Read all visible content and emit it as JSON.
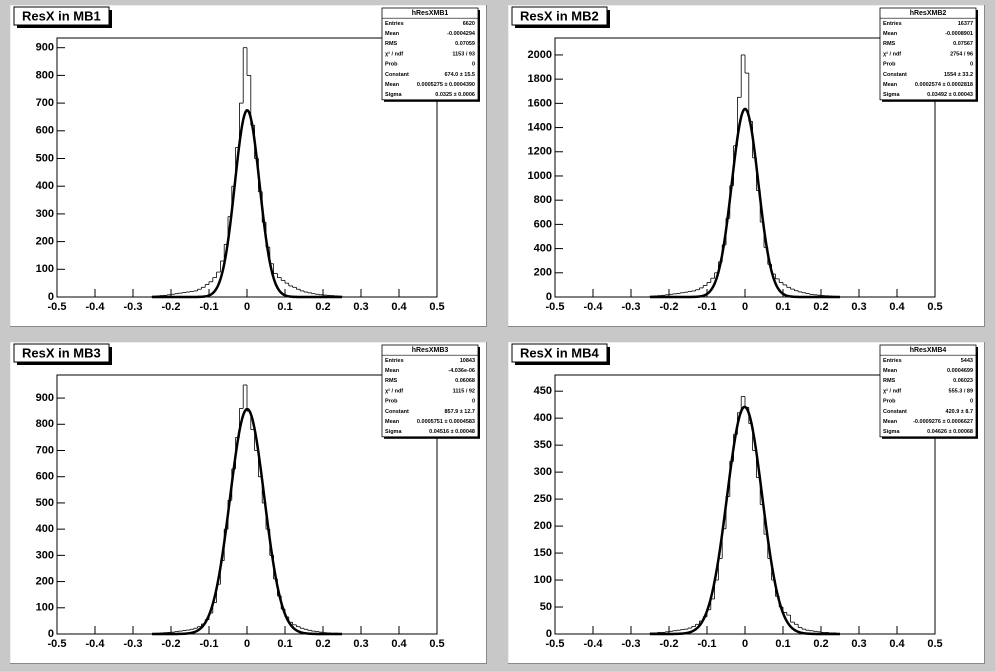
{
  "chart_data": [
    {
      "type": "histogram",
      "title": "ResX in MB1",
      "bins": [
        -0.25,
        -0.24,
        -0.23,
        -0.22,
        -0.21,
        -0.2,
        -0.19,
        -0.18,
        -0.17,
        -0.16,
        -0.15,
        -0.14,
        -0.13,
        -0.12,
        -0.11,
        -0.1,
        -0.09,
        -0.08,
        -0.07,
        -0.06,
        -0.05,
        -0.04,
        -0.03,
        -0.02,
        -0.01,
        0,
        0.01,
        0.02,
        0.03,
        0.04,
        0.05,
        0.06,
        0.07,
        0.08,
        0.09,
        0.1,
        0.11,
        0.12,
        0.13,
        0.14,
        0.15,
        0.16,
        0.17,
        0.18,
        0.19,
        0.2,
        0.21,
        0.22,
        0.23,
        0.24,
        0.25
      ],
      "counts": [
        3,
        4,
        5,
        6,
        8,
        10,
        12,
        14,
        16,
        18,
        20,
        22,
        28,
        35,
        45,
        55,
        70,
        90,
        130,
        190,
        290,
        400,
        540,
        700,
        900,
        800,
        620,
        500,
        380,
        270,
        180,
        120,
        85,
        70,
        60,
        50,
        40,
        35,
        28,
        22,
        18,
        15,
        12,
        10,
        8,
        7,
        6,
        5,
        4,
        3
      ],
      "color": "#000000",
      "xlim": [
        -0.5,
        0.5
      ],
      "xticks": [
        -0.5,
        -0.4,
        -0.3,
        -0.2,
        -0.1,
        0,
        0.1,
        0.2,
        0.3,
        0.4,
        0.5
      ],
      "ylim": [
        0,
        935
      ],
      "yticks": [
        0,
        100,
        200,
        300,
        400,
        500,
        600,
        700,
        800,
        900
      ],
      "stats": {
        "title": "hResXMB1",
        "rows": [
          {
            "label": "Entries",
            "value": 6620
          },
          {
            "label": "Mean",
            "value": -0.0004294
          },
          {
            "label": "RMS",
            "value": 0.07059
          },
          {
            "label": "χ² / ndf",
            "value_label": "1153 / 93"
          },
          {
            "label": "Prob",
            "value": 0
          },
          {
            "label": "Constant",
            "value": 674.0,
            "error": 15.5,
            "value_label": "674.0 ± 15.5"
          },
          {
            "label": "Mean",
            "value": 0.0005275,
            "error": 0.000439,
            "value_label": "0.0005275 ± 0.0004390"
          },
          {
            "label": "Sigma",
            "value": 0.0325,
            "error": 0.0006,
            "value_label": "0.0325 ± 0.0006"
          }
        ]
      }
    },
    {
      "type": "histogram",
      "title": "ResX in MB2",
      "bins": [
        -0.25,
        -0.24,
        -0.23,
        -0.22,
        -0.21,
        -0.2,
        -0.19,
        -0.18,
        -0.17,
        -0.16,
        -0.15,
        -0.14,
        -0.13,
        -0.12,
        -0.11,
        -0.1,
        -0.09,
        -0.08,
        -0.07,
        -0.06,
        -0.05,
        -0.04,
        -0.03,
        -0.02,
        -0.01,
        0,
        0.01,
        0.02,
        0.03,
        0.04,
        0.05,
        0.06,
        0.07,
        0.08,
        0.09,
        0.1,
        0.11,
        0.12,
        0.13,
        0.14,
        0.15,
        0.16,
        0.17,
        0.18,
        0.19,
        0.2,
        0.21,
        0.22,
        0.23,
        0.24,
        0.25
      ],
      "counts": [
        7,
        9,
        11,
        14,
        18,
        22,
        26,
        30,
        35,
        40,
        45,
        50,
        60,
        75,
        95,
        120,
        155,
        200,
        290,
        430,
        650,
        920,
        1250,
        1650,
        2000,
        1850,
        1450,
        1150,
        880,
        620,
        410,
        270,
        190,
        150,
        120,
        100,
        80,
        65,
        52,
        42,
        35,
        28,
        22,
        18,
        15,
        12,
        10,
        8,
        6,
        5
      ],
      "color": "#000000",
      "xlim": [
        -0.5,
        0.5
      ],
      "xticks": [
        -0.5,
        -0.4,
        -0.3,
        -0.2,
        -0.1,
        0,
        0.1,
        0.2,
        0.3,
        0.4,
        0.5
      ],
      "ylim": [
        0,
        2140
      ],
      "yticks": [
        0,
        200,
        400,
        600,
        800,
        1000,
        1200,
        1400,
        1600,
        1800,
        2000
      ],
      "stats": {
        "title": "hResXMB2",
        "rows": [
          {
            "label": "Entries",
            "value": 16377
          },
          {
            "label": "Mean",
            "value": -0.0008901
          },
          {
            "label": "RMS",
            "value": 0.07567
          },
          {
            "label": "χ² / ndf",
            "value_label": "2754 / 96"
          },
          {
            "label": "Prob",
            "value": 0
          },
          {
            "label": "Constant",
            "value": 1554,
            "error": 33.2,
            "value_label": "1554 ± 33.2"
          },
          {
            "label": "Mean",
            "value": 0.0002574,
            "error": 0.0002818,
            "value_label": "0.0002574 ± 0.0002818"
          },
          {
            "label": "Sigma",
            "value": 0.03492,
            "error": 0.00043,
            "value_label": "0.03492 ± 0.00043"
          }
        ]
      }
    },
    {
      "type": "histogram",
      "title": "ResX in MB3",
      "bins": [
        -0.25,
        -0.24,
        -0.23,
        -0.22,
        -0.21,
        -0.2,
        -0.19,
        -0.18,
        -0.17,
        -0.16,
        -0.15,
        -0.14,
        -0.13,
        -0.12,
        -0.11,
        -0.1,
        -0.09,
        -0.08,
        -0.07,
        -0.06,
        -0.05,
        -0.04,
        -0.03,
        -0.02,
        -0.01,
        0,
        0.01,
        0.02,
        0.03,
        0.04,
        0.05,
        0.06,
        0.07,
        0.08,
        0.09,
        0.1,
        0.11,
        0.12,
        0.13,
        0.14,
        0.15,
        0.16,
        0.17,
        0.18,
        0.19,
        0.2,
        0.21,
        0.22,
        0.23,
        0.24,
        0.25
      ],
      "counts": [
        2,
        3,
        4,
        5,
        6,
        7,
        9,
        11,
        13,
        15,
        18,
        22,
        28,
        38,
        55,
        80,
        120,
        190,
        280,
        400,
        510,
        630,
        750,
        860,
        950,
        850,
        780,
        700,
        600,
        500,
        400,
        300,
        210,
        145,
        95,
        65,
        45,
        35,
        28,
        22,
        18,
        14,
        11,
        9,
        7,
        5,
        4,
        3,
        3,
        2
      ],
      "color": "#000000",
      "xlim": [
        -0.5,
        0.5
      ],
      "xticks": [
        -0.5,
        -0.4,
        -0.3,
        -0.2,
        -0.1,
        0,
        0.1,
        0.2,
        0.3,
        0.4,
        0.5
      ],
      "ylim": [
        0,
        988
      ],
      "yticks": [
        0,
        100,
        200,
        300,
        400,
        500,
        600,
        700,
        800,
        900
      ],
      "stats": {
        "title": "hResXMB3",
        "rows": [
          {
            "label": "Entries",
            "value": 10843
          },
          {
            "label": "Mean",
            "value": -4.036e-06,
            "value_label": "-4.036e-06"
          },
          {
            "label": "RMS",
            "value": 0.06068
          },
          {
            "label": "χ² / ndf",
            "value_label": "1115 / 92"
          },
          {
            "label": "Prob",
            "value": 0
          },
          {
            "label": "Constant",
            "value": 857.9,
            "error": 12.7,
            "value_label": "857.9 ± 12.7"
          },
          {
            "label": "Mean",
            "value": 0.0005751,
            "error": 0.0004583,
            "value_label": "0.0005751 ± 0.0004583"
          },
          {
            "label": "Sigma",
            "value": 0.04516,
            "error": 0.00048,
            "value_label": "0.04516 ± 0.00048"
          }
        ]
      }
    },
    {
      "type": "histogram",
      "title": "ResX in MB4",
      "bins": [
        -0.25,
        -0.24,
        -0.23,
        -0.22,
        -0.21,
        -0.2,
        -0.19,
        -0.18,
        -0.17,
        -0.16,
        -0.15,
        -0.14,
        -0.13,
        -0.12,
        -0.11,
        -0.1,
        -0.09,
        -0.08,
        -0.07,
        -0.06,
        -0.05,
        -0.04,
        -0.03,
        -0.02,
        -0.01,
        0,
        0.01,
        0.02,
        0.03,
        0.04,
        0.05,
        0.06,
        0.07,
        0.08,
        0.09,
        0.1,
        0.11,
        0.12,
        0.13,
        0.14,
        0.15,
        0.16,
        0.17,
        0.18,
        0.19,
        0.2,
        0.21,
        0.22,
        0.23,
        0.24,
        0.25
      ],
      "counts": [
        2,
        2,
        3,
        3,
        4,
        5,
        6,
        7,
        8,
        9,
        11,
        14,
        18,
        24,
        32,
        45,
        65,
        100,
        140,
        195,
        255,
        320,
        370,
        410,
        440,
        420,
        390,
        340,
        290,
        240,
        185,
        140,
        100,
        70,
        50,
        40,
        35,
        22,
        18,
        12,
        9,
        7,
        6,
        5,
        4,
        3,
        3,
        2,
        2,
        1
      ],
      "color": "#000000",
      "xlim": [
        -0.5,
        0.5
      ],
      "xticks": [
        -0.5,
        -0.4,
        -0.3,
        -0.2,
        -0.1,
        0,
        0.1,
        0.2,
        0.3,
        0.4,
        0.5
      ],
      "ylim": [
        0,
        480
      ],
      "yticks": [
        0,
        50,
        100,
        150,
        200,
        250,
        300,
        350,
        400,
        450
      ],
      "stats": {
        "title": "hResXMB4",
        "rows": [
          {
            "label": "Entries",
            "value": 5443
          },
          {
            "label": "Mean",
            "value": 0.0004699
          },
          {
            "label": "RMS",
            "value": 0.06023
          },
          {
            "label": "χ² / ndf",
            "value_label": "555.3 / 89"
          },
          {
            "label": "Prob",
            "value": 0
          },
          {
            "label": "Constant",
            "value": 420.9,
            "error": 8.7,
            "value_label": "420.9 ± 8.7"
          },
          {
            "label": "Mean",
            "value": -0.0009276,
            "error": 0.0006627,
            "value_label": "-0.0009276 ± 0.0006627"
          },
          {
            "label": "Sigma",
            "value": 0.04626,
            "error": 0.00068,
            "value_label": "0.04626 ± 0.00068"
          }
        ]
      }
    }
  ]
}
